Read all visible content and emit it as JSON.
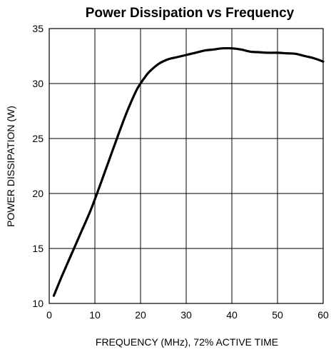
{
  "chart_data": {
    "type": "line",
    "title": "Power Dissipation vs Frequency",
    "xlabel": "FREQUENCY (MHz), 72% ACTIVE TIME",
    "ylabel": "POWER DISSIPATION (W)",
    "xlim": [
      0,
      60
    ],
    "ylim": [
      10,
      35
    ],
    "xticks": [
      0,
      10,
      20,
      30,
      40,
      50,
      60
    ],
    "yticks": [
      10,
      15,
      20,
      25,
      30,
      35
    ],
    "grid": true,
    "line_color": "#000000",
    "series": [
      {
        "x": [
          1,
          3,
          5,
          7,
          9,
          11,
          13,
          15,
          17,
          19,
          20,
          21,
          22,
          24,
          26,
          28,
          30,
          32,
          34,
          36,
          38,
          40,
          42,
          44,
          46,
          48,
          50,
          52,
          54,
          56,
          58,
          60
        ],
        "y": [
          10.7,
          12.7,
          14.6,
          16.5,
          18.4,
          20.6,
          22.9,
          25.2,
          27.4,
          29.3,
          30.0,
          30.6,
          31.1,
          31.8,
          32.2,
          32.4,
          32.6,
          32.8,
          33.0,
          33.1,
          33.2,
          33.2,
          33.1,
          32.9,
          32.85,
          32.8,
          32.8,
          32.75,
          32.7,
          32.5,
          32.3,
          32.0
        ]
      }
    ]
  }
}
